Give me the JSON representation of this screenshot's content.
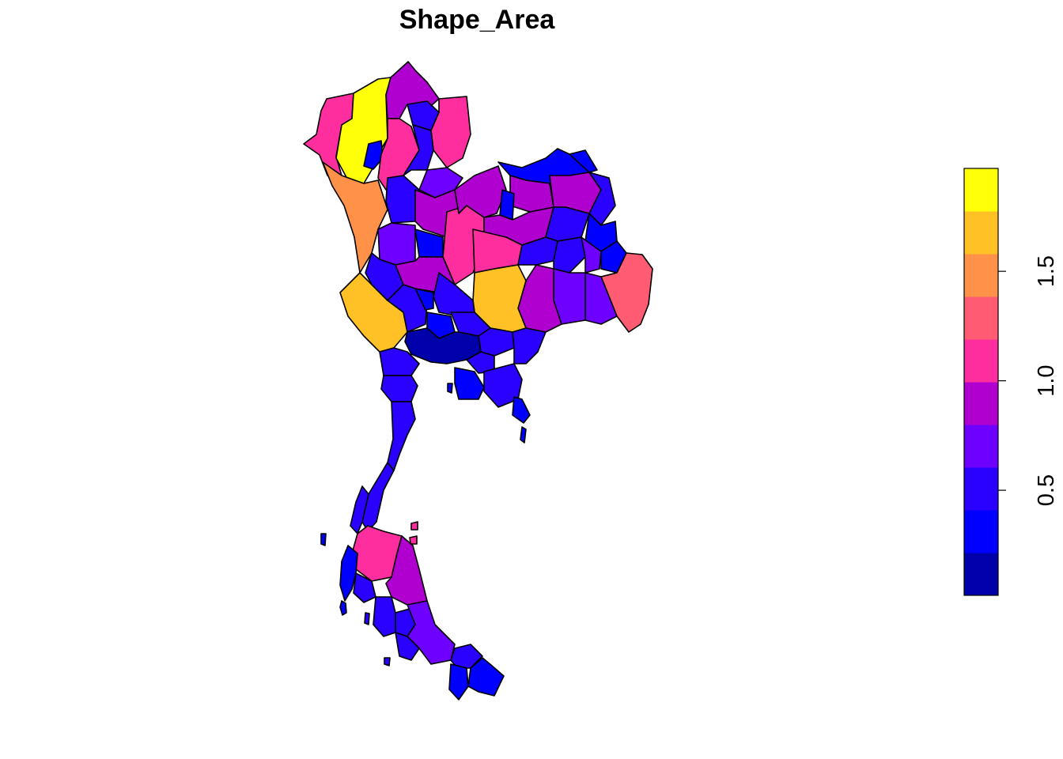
{
  "title": "Shape_Area",
  "colors": {
    "c0": "#0000AA",
    "c1": "#0000FF",
    "c2": "#2A00FF",
    "c3": "#6E00FF",
    "c4": "#B000CF",
    "c5": "#FF2E9F",
    "c6": "#FF5C73",
    "c7": "#FF9148",
    "c8": "#FFC125",
    "c9": "#FFFF0A"
  },
  "legend": {
    "position": "right",
    "range": [
      0.02,
      1.97
    ],
    "bins": [
      "c0",
      "c1",
      "c2",
      "c3",
      "c4",
      "c5",
      "c6",
      "c7",
      "c8",
      "c9"
    ],
    "ticks": [
      {
        "value": 0.5,
        "label": "0.5"
      },
      {
        "value": 1.0,
        "label": "1.0"
      },
      {
        "value": 1.5,
        "label": "1.5"
      }
    ]
  },
  "chart_data": {
    "type": "heatmap",
    "title": "Shape_Area",
    "value_range": [
      0.02,
      1.97
    ],
    "legend_ticks": [
      0.5,
      1.0,
      1.5
    ],
    "legend_placement": "right",
    "n_color_classes": 10
  }
}
